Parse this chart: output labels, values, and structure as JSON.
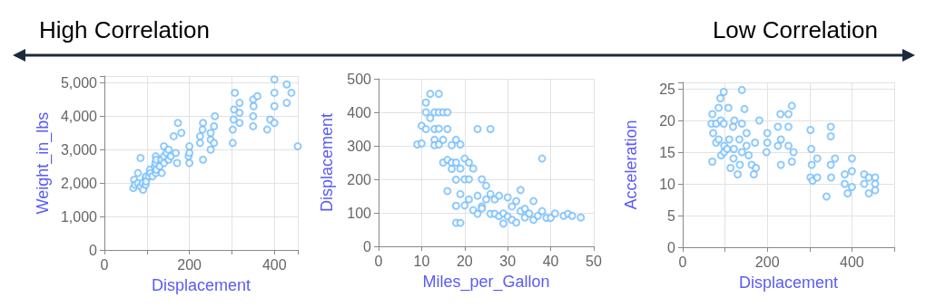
{
  "chart_data": [
    {
      "type": "other",
      "annotations": [
        "High Correlation",
        "Low Correlation"
      ]
    },
    {
      "type": "scatter",
      "xlabel": "Displacement",
      "ylabel": "Weight_in_lbs",
      "xlim": [
        0,
        455
      ],
      "ylim": [
        0,
        5200
      ],
      "xticks": [
        0,
        {
          "value": 100,
          "label": null
        },
        200,
        {
          "value": 300,
          "label": null
        },
        400
      ],
      "yticks": [
        0,
        {
          "value": 1000,
          "label": "1,000"
        },
        {
          "value": 2000,
          "label": "2,000"
        },
        {
          "value": 3000,
          "label": "3,000"
        },
        {
          "value": 4000,
          "label": "4,000"
        },
        {
          "value": 5000,
          "label": "5,000"
        }
      ],
      "grid": true,
      "marker": "circle",
      "series": [
        {
          "color": "#74bdfc",
          "x": [
            68,
            70,
            72,
            79,
            79,
            85,
            85,
            90,
            91,
            97,
            97,
            98,
            98,
            105,
            107,
            108,
            113,
            119,
            120,
            121,
            121,
            122,
            122,
            130,
            134,
            135,
            140,
            140,
            140,
            146,
            151,
            151,
            156,
            163,
            168,
            171,
            173,
            181,
            198,
            200,
            200,
            200,
            225,
            225,
            231,
            232,
            232,
            250,
            250,
            250,
            258,
            258,
            260,
            302,
            302,
            304,
            305,
            307,
            318,
            318,
            318,
            350,
            350,
            350,
            351,
            360,
            383,
            390,
            400,
            400,
            400,
            400,
            429,
            429,
            440,
            455
          ],
          "values": [
            1850,
            2100,
            1950,
            2000,
            2300,
            1900,
            2750,
            2000,
            1800,
            2150,
            1950,
            2200,
            2050,
            2200,
            2400,
            2300,
            2200,
            2500,
            2600,
            2300,
            2800,
            2700,
            2400,
            2500,
            2700,
            2300,
            2600,
            2800,
            3100,
            2900,
            2700,
            3000,
            2800,
            3400,
            2900,
            2600,
            3800,
            3500,
            2800,
            2900,
            3100,
            2600,
            3400,
            3200,
            3600,
            2700,
            3800,
            3300,
            3500,
            3000,
            3200,
            3700,
            4000,
            3200,
            3600,
            3900,
            4200,
            4700,
            4100,
            3800,
            4400,
            3700,
            4000,
            4500,
            4300,
            4600,
            3600,
            3900,
            4300,
            4700,
            5100,
            3800,
            4400,
            4950,
            4700,
            3100
          ]
        }
      ]
    },
    {
      "type": "scatter",
      "xlabel": "Miles_per_Gallon",
      "ylabel": "Displacement",
      "xlim": [
        0,
        50
      ],
      "ylim": [
        0,
        500
      ],
      "xticks": [
        0,
        10,
        20,
        30,
        40,
        50
      ],
      "yticks": [
        0,
        100,
        200,
        300,
        400,
        500
      ],
      "grid": true,
      "marker": "circle",
      "series": [
        {
          "color": "#74bdfc",
          "x": [
            9,
            10,
            10,
            11,
            11,
            11,
            12,
            12,
            13,
            13,
            13,
            13,
            14,
            14,
            14,
            14,
            15,
            15,
            15,
            16,
            16,
            16,
            16,
            17,
            17,
            17,
            18,
            18,
            18,
            18,
            18,
            19,
            19,
            19,
            19,
            20,
            20,
            20,
            21,
            21,
            21,
            22,
            22,
            23,
            23,
            23,
            24,
            24,
            24,
            25,
            25,
            26,
            26,
            26,
            27,
            27,
            28,
            28,
            29,
            29,
            30,
            30,
            31,
            31,
            32,
            32,
            33,
            33,
            34,
            34,
            35,
            36,
            36,
            37,
            38,
            38,
            39,
            40,
            41,
            43,
            44,
            45,
            47
          ],
          "values": [
            304,
            307,
            360,
            350,
            400,
            429,
            455,
            383,
            400,
            350,
            318,
            302,
            455,
            400,
            351,
            304,
            318,
            250,
            400,
            350,
            258,
            400,
            165,
            302,
            250,
            231,
            318,
            250,
            121,
            70,
            199,
            232,
            304,
            70,
            156,
            200,
            262,
            122,
            200,
            140,
            250,
            232,
            108,
            350,
            97,
            151,
            200,
            119,
            113,
            181,
            140,
            97,
            350,
            156,
            97,
            140,
            151,
            90,
            68,
            98,
            146,
            89,
            79,
            119,
            135,
            71,
            168,
            105,
            86,
            112,
            98,
            135,
            79,
            91,
            262,
            105,
            85,
            85,
            98,
            91,
            97,
            91,
            86
          ]
        }
      ]
    },
    {
      "type": "scatter",
      "xlabel": "Displacement",
      "ylabel": "Acceleration",
      "xlim": [
        0,
        500
      ],
      "ylim": [
        0,
        26
      ],
      "xticks": [
        0,
        {
          "value": 100,
          "label": null
        },
        200,
        {
          "value": 300,
          "label": null
        },
        400,
        {
          "value": 500,
          "label": null
        }
      ],
      "yticks": [
        0,
        5,
        10,
        15,
        20,
        25
      ],
      "grid": true,
      "marker": "circle",
      "series": [
        {
          "color": "#74bdfc",
          "x": [
            68,
            70,
            70,
            72,
            79,
            79,
            85,
            85,
            89,
            90,
            91,
            97,
            97,
            98,
            98,
            105,
            108,
            110,
            113,
            119,
            120,
            121,
            122,
            130,
            134,
            135,
            140,
            140,
            140,
            146,
            151,
            151,
            156,
            163,
            168,
            171,
            173,
            181,
            198,
            200,
            200,
            225,
            225,
            231,
            232,
            232,
            250,
            250,
            250,
            258,
            258,
            262,
            302,
            302,
            304,
            305,
            307,
            318,
            318,
            350,
            350,
            350,
            351,
            340,
            360,
            383,
            383,
            390,
            400,
            400,
            400,
            429,
            429,
            440,
            440,
            455,
            455,
            455
          ],
          "values": [
            19.5,
            21,
            13.5,
            18,
            19.5,
            16.5,
            22,
            17,
            23.5,
            20,
            14.5,
            24.5,
            19.5,
            16,
            15,
            15.5,
            22,
            17,
            12.5,
            19,
            14,
            15.5,
            20,
            11.5,
            17,
            13,
            24.8,
            19.5,
            15,
            21.8,
            18,
            16,
            14.5,
            13,
            11.5,
            16.5,
            12.5,
            20,
            15,
            18,
            16.5,
            19,
            16,
            21,
            17,
            13,
            21,
            16,
            19,
            22.3,
            13.5,
            15,
            18.5,
            11,
            15.5,
            13,
            10.5,
            14,
            11,
            19,
            17.5,
            13,
            11,
            8,
            14,
            11.5,
            10,
            8.5,
            14,
            12,
            9.5,
            11.5,
            10,
            8.5,
            11,
            11,
            10,
            9
          ]
        }
      ]
    }
  ]
}
